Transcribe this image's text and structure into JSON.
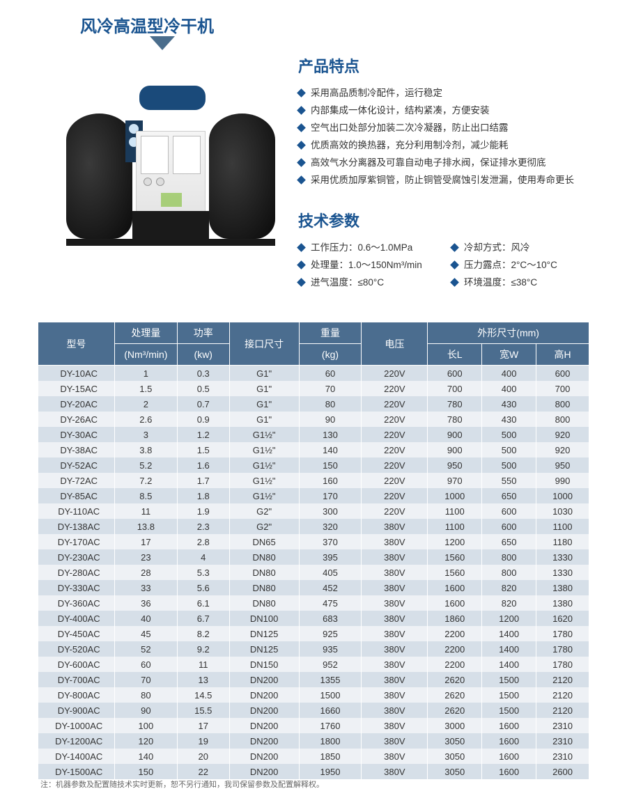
{
  "title": "风冷高温型冷干机",
  "features": {
    "heading": "产品特点",
    "items": [
      "采用高品质制冷配件，运行稳定",
      "内部集成一体化设计，结构紧凑，方便安装",
      "空气出口处部分加装二次冷凝器，防止出口结露",
      "优质高效的换热器，充分利用制冷剂，减少能耗",
      "高效气水分离器及可靠自动电子排水阀，保证排水更彻底",
      "采用优质加厚紫铜管，防止铜管受腐蚀引发泄漏，使用寿命更长"
    ]
  },
  "params": {
    "heading": "技术参数",
    "left": [
      "工作压力：0.6～1.0MPa",
      "处理量：1.0～150Nm³/min",
      "进气温度：≤80°C"
    ],
    "right": [
      "冷却方式：风冷",
      "压力露点：2°C～10°C",
      "环境温度：≤38°C"
    ]
  },
  "table": {
    "headers": {
      "model": "型号",
      "processing": "处理量",
      "processing_unit": "(Nm³/min)",
      "power": "功率",
      "power_unit": "(kw)",
      "port": "接口尺寸",
      "weight": "重量",
      "weight_unit": "(kg)",
      "voltage": "电压",
      "dims": "外形尺寸(mm)",
      "L": "长L",
      "W": "宽W",
      "H": "高H"
    },
    "rows": [
      [
        "DY-10AC",
        "1",
        "0.3",
        "G1\"",
        "60",
        "220V",
        "600",
        "400",
        "600"
      ],
      [
        "DY-15AC",
        "1.5",
        "0.5",
        "G1\"",
        "70",
        "220V",
        "700",
        "400",
        "700"
      ],
      [
        "DY-20AC",
        "2",
        "0.7",
        "G1\"",
        "80",
        "220V",
        "780",
        "430",
        "800"
      ],
      [
        "DY-26AC",
        "2.6",
        "0.9",
        "G1\"",
        "90",
        "220V",
        "780",
        "430",
        "800"
      ],
      [
        "DY-30AC",
        "3",
        "1.2",
        "G1½\"",
        "130",
        "220V",
        "900",
        "500",
        "920"
      ],
      [
        "DY-38AC",
        "3.8",
        "1.5",
        "G1½\"",
        "140",
        "220V",
        "900",
        "500",
        "920"
      ],
      [
        "DY-52AC",
        "5.2",
        "1.6",
        "G1½\"",
        "150",
        "220V",
        "950",
        "500",
        "950"
      ],
      [
        "DY-72AC",
        "7.2",
        "1.7",
        "G1½\"",
        "160",
        "220V",
        "970",
        "550",
        "990"
      ],
      [
        "DY-85AC",
        "8.5",
        "1.8",
        "G1½\"",
        "170",
        "220V",
        "1000",
        "650",
        "1000"
      ],
      [
        "DY-110AC",
        "11",
        "1.9",
        "G2\"",
        "300",
        "220V",
        "1100",
        "600",
        "1030"
      ],
      [
        "DY-138AC",
        "13.8",
        "2.3",
        "G2\"",
        "320",
        "380V",
        "1100",
        "600",
        "1100"
      ],
      [
        "DY-170AC",
        "17",
        "2.8",
        "DN65",
        "370",
        "380V",
        "1200",
        "650",
        "1180"
      ],
      [
        "DY-230AC",
        "23",
        "4",
        "DN80",
        "395",
        "380V",
        "1560",
        "800",
        "1330"
      ],
      [
        "DY-280AC",
        "28",
        "5.3",
        "DN80",
        "405",
        "380V",
        "1560",
        "800",
        "1330"
      ],
      [
        "DY-330AC",
        "33",
        "5.6",
        "DN80",
        "452",
        "380V",
        "1600",
        "820",
        "1380"
      ],
      [
        "DY-360AC",
        "36",
        "6.1",
        "DN80",
        "475",
        "380V",
        "1600",
        "820",
        "1380"
      ],
      [
        "DY-400AC",
        "40",
        "6.7",
        "DN100",
        "683",
        "380V",
        "1860",
        "1200",
        "1620"
      ],
      [
        "DY-450AC",
        "45",
        "8.2",
        "DN125",
        "925",
        "380V",
        "2200",
        "1400",
        "1780"
      ],
      [
        "DY-520AC",
        "52",
        "9.2",
        "DN125",
        "935",
        "380V",
        "2200",
        "1400",
        "1780"
      ],
      [
        "DY-600AC",
        "60",
        "11",
        "DN150",
        "952",
        "380V",
        "2200",
        "1400",
        "1780"
      ],
      [
        "DY-700AC",
        "70",
        "13",
        "DN200",
        "1355",
        "380V",
        "2620",
        "1500",
        "2120"
      ],
      [
        "DY-800AC",
        "80",
        "14.5",
        "DN200",
        "1500",
        "380V",
        "2620",
        "1500",
        "2120"
      ],
      [
        "DY-900AC",
        "90",
        "15.5",
        "DN200",
        "1660",
        "380V",
        "2620",
        "1500",
        "2120"
      ],
      [
        "DY-1000AC",
        "100",
        "17",
        "DN200",
        "1760",
        "380V",
        "3000",
        "1600",
        "2310"
      ],
      [
        "DY-1200AC",
        "120",
        "19",
        "DN200",
        "1800",
        "380V",
        "3050",
        "1600",
        "2310"
      ],
      [
        "DY-1400AC",
        "140",
        "20",
        "DN200",
        "1850",
        "380V",
        "3050",
        "1600",
        "2310"
      ],
      [
        "DY-1500AC",
        "150",
        "22",
        "DN200",
        "1950",
        "380V",
        "3050",
        "1600",
        "2600"
      ]
    ]
  },
  "footnote": "注：机器参数及配置随技术实时更新，恕不另行通知，我司保留参数及配置解释权。",
  "colors": {
    "brand": "#1a5490",
    "table_header": "#4b6d8f",
    "row_odd": "#d6dfe8",
    "row_even": "#eef1f5"
  }
}
